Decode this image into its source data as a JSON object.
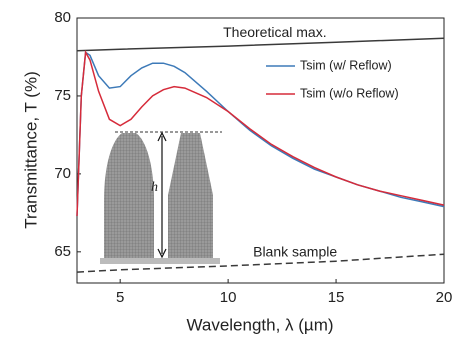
{
  "chart_data": {
    "type": "line",
    "xlabel": "Wavelength, λ (µm)",
    "ylabel": "Transmittance, T (%)",
    "xlim": [
      3,
      20
    ],
    "ylim": [
      63,
      80
    ],
    "xticks": [
      5,
      10,
      15,
      20
    ],
    "yticks": [
      65,
      70,
      75,
      80
    ],
    "legend": "upper right",
    "inset_label": "h",
    "series": [
      {
        "name": "Theoretical max.",
        "color": "#3a3a3a",
        "dashed": false,
        "legend": false,
        "x": [
          3,
          5,
          10,
          15,
          20
        ],
        "values": [
          77.9,
          78.0,
          78.2,
          78.45,
          78.7
        ]
      },
      {
        "name": "Tsim (w/ Reflow)",
        "color": "#3d7ab8",
        "dashed": false,
        "legend": true,
        "x": [
          3,
          3.2,
          3.4,
          3.6,
          4,
          4.5,
          5,
          5.5,
          6,
          6.5,
          7,
          7.5,
          8,
          9,
          10,
          11,
          12,
          13,
          14,
          15,
          16,
          17,
          18,
          19,
          20
        ],
        "values": [
          67.3,
          75,
          77.8,
          77.6,
          76.3,
          75.5,
          75.6,
          76.3,
          76.8,
          77.1,
          77.1,
          76.9,
          76.5,
          75.3,
          74.0,
          72.8,
          71.8,
          71.0,
          70.3,
          69.8,
          69.3,
          68.9,
          68.5,
          68.2,
          67.9
        ]
      },
      {
        "name": "Tsim (w/o Reflow)",
        "color": "#d62b3a",
        "dashed": false,
        "legend": true,
        "x": [
          3,
          3.2,
          3.4,
          3.6,
          4,
          4.5,
          5,
          5.5,
          6,
          6.5,
          7,
          7.5,
          8,
          9,
          10,
          11,
          12,
          13,
          14,
          15,
          16,
          17,
          18,
          19,
          20
        ],
        "values": [
          67.3,
          75,
          77.8,
          77.3,
          75.3,
          73.5,
          73.1,
          73.5,
          74.3,
          75.0,
          75.4,
          75.6,
          75.5,
          74.9,
          74.0,
          72.9,
          71.9,
          71.1,
          70.4,
          69.8,
          69.3,
          68.9,
          68.6,
          68.3,
          68.0
        ]
      },
      {
        "name": "Blank sample",
        "color": "#3a3a3a",
        "dashed": true,
        "legend": false,
        "x": [
          3,
          5,
          10,
          15,
          20
        ],
        "values": [
          63.7,
          63.85,
          64.1,
          64.4,
          64.85
        ]
      }
    ]
  }
}
